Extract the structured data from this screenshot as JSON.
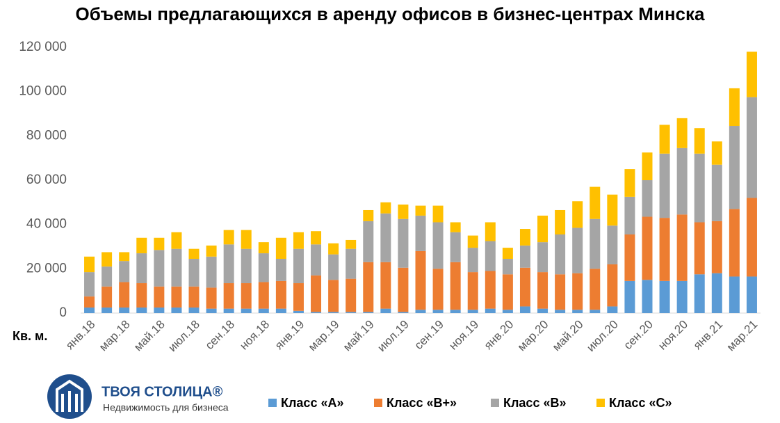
{
  "chart_data": {
    "type": "stacked_bar",
    "title": "Объемы предлагающихся в аренду офисов в бизнес-центрах Минска",
    "y_label": "Кв. м.",
    "categories": [
      "янв.18",
      null,
      "мар.18",
      null,
      "май.18",
      null,
      "июл.18",
      null,
      "сен.18",
      null,
      "ноя.18",
      null,
      "янв.19",
      null,
      "мар.19",
      null,
      "май.19",
      null,
      "июл.19",
      null,
      "сен.19",
      null,
      "ноя.19",
      null,
      "янв.20",
      null,
      "мар.20",
      null,
      "май.20",
      null,
      "июл.20",
      null,
      "сен.20",
      null,
      "ноя.20",
      null,
      "янв.21",
      null,
      "мар.21"
    ],
    "series": [
      {
        "name": "Класс «А»",
        "color": "#5b9bd5",
        "values": [
          2500,
          2500,
          2500,
          2500,
          2500,
          2500,
          2500,
          2000,
          2000,
          2000,
          2000,
          2000,
          1000,
          500,
          500,
          500,
          500,
          2000,
          500,
          1500,
          1500,
          1500,
          1500,
          2000,
          1500,
          3000,
          2000,
          1500,
          1500,
          1500,
          3000,
          14500,
          15000,
          14500,
          14500,
          17500,
          18000,
          16500,
          16500
        ]
      },
      {
        "name": "Класс «В+»",
        "color": "#ed7d31",
        "values": [
          5000,
          9500,
          11500,
          11000,
          9500,
          9500,
          9500,
          9500,
          11500,
          11500,
          12000,
          12500,
          12500,
          16500,
          14500,
          15000,
          22500,
          21000,
          20000,
          26500,
          18500,
          21500,
          17000,
          17000,
          16000,
          17500,
          16500,
          16000,
          16500,
          18500,
          19000,
          21000,
          28500,
          28500,
          30000,
          23500,
          23500,
          30500,
          35500
        ]
      },
      {
        "name": "Класс «В»",
        "color": "#a5a5a5",
        "values": [
          11000,
          9000,
          9500,
          13500,
          16500,
          17000,
          12500,
          14000,
          17500,
          15500,
          13000,
          10000,
          15500,
          14000,
          11500,
          13500,
          18500,
          22000,
          22000,
          16000,
          21000,
          13500,
          11000,
          13500,
          7000,
          10000,
          13500,
          18000,
          20500,
          22500,
          17500,
          17000,
          16500,
          29000,
          30000,
          31000,
          25500,
          37500,
          45500
        ]
      },
      {
        "name": "Класс «С»",
        "color": "#ffc000",
        "values": [
          7000,
          6500,
          4000,
          7000,
          5500,
          7500,
          4500,
          5000,
          6500,
          8500,
          5000,
          9500,
          7500,
          6000,
          5000,
          4000,
          5000,
          5000,
          6500,
          4500,
          7500,
          4500,
          5500,
          8500,
          5000,
          7500,
          12000,
          11000,
          12000,
          14500,
          14000,
          12500,
          12500,
          13000,
          13500,
          11500,
          10500,
          17000,
          20500
        ]
      }
    ],
    "ylim": [
      0,
      120000
    ],
    "yticks": [
      0,
      {
        "value": 20000,
        "label": "20 000"
      },
      {
        "value": 40000,
        "label": "40 000"
      },
      {
        "value": 60000,
        "label": "60 000"
      },
      {
        "value": 80000,
        "label": "80 000"
      },
      {
        "value": 100000,
        "label": "100 000"
      },
      {
        "value": 120000,
        "label": "120 000"
      }
    ],
    "grid": false
  },
  "brand": {
    "name": "ТВОЯ СТОЛИЦА®",
    "tagline": "Недвижимость для бизнеса"
  }
}
